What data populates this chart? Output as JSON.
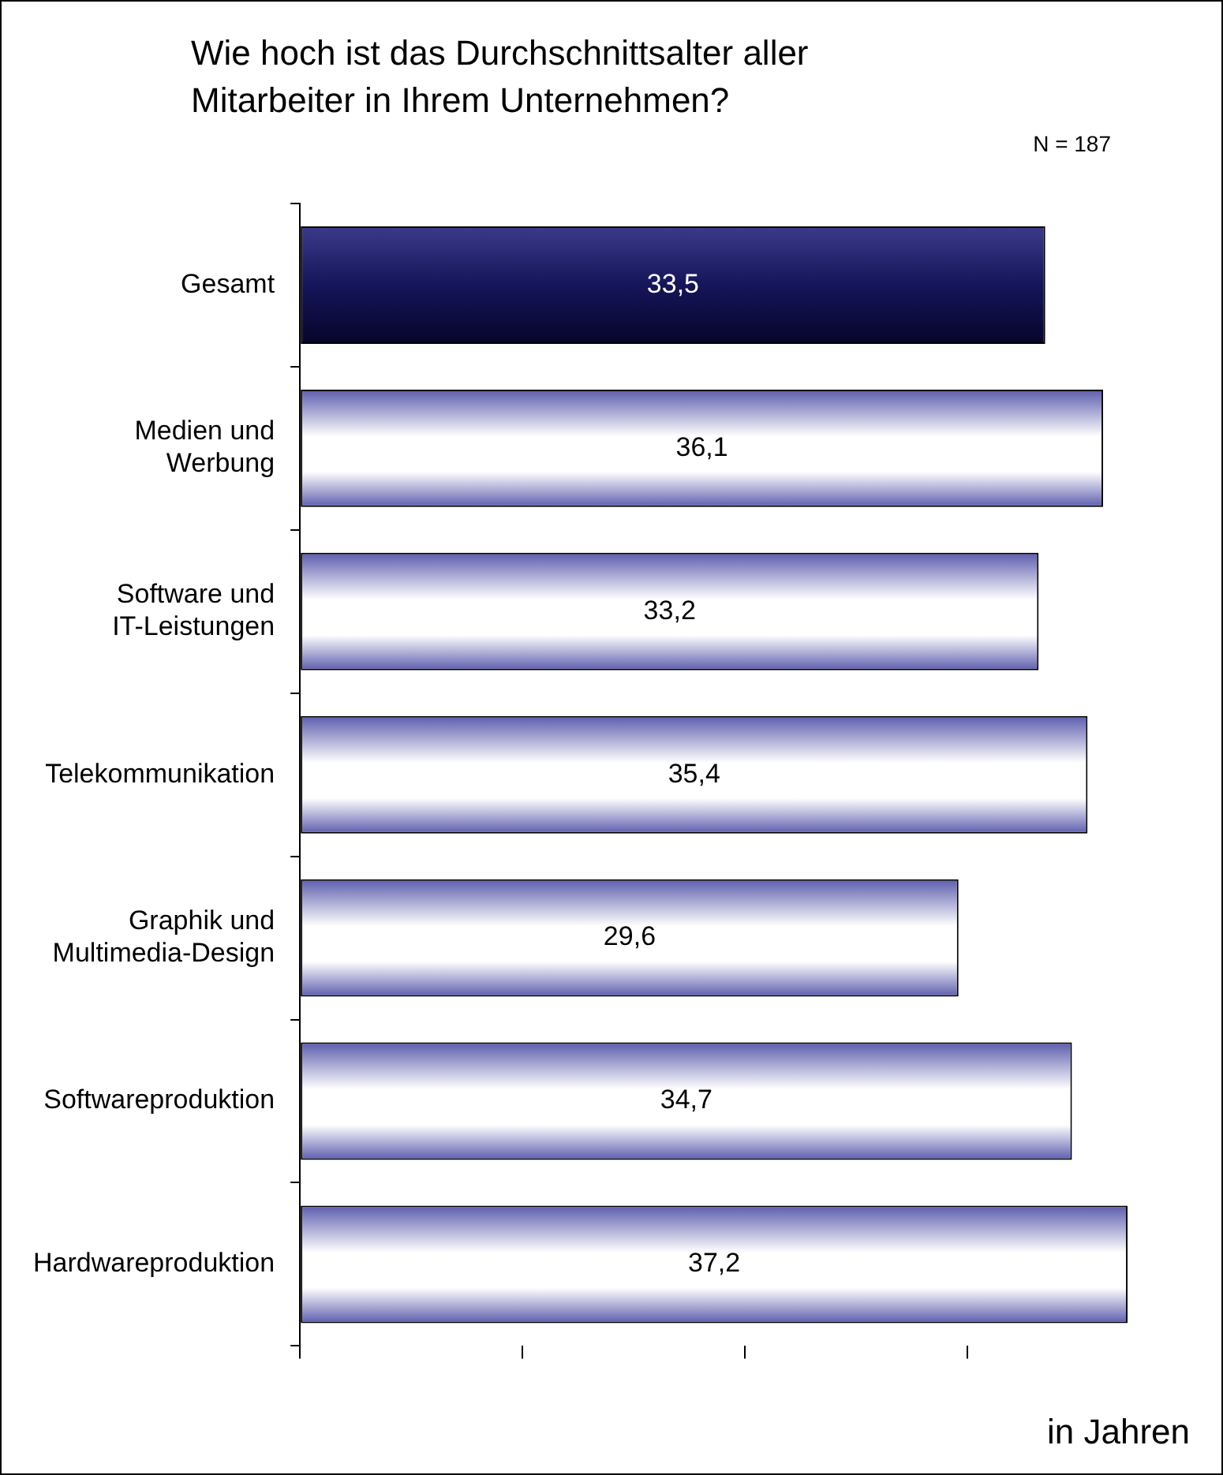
{
  "chart_data": {
    "type": "bar",
    "orientation": "horizontal",
    "title": "Wie hoch ist das Durchschnittsalter aller Mitarbeiter in Ihrem Unternehmen?",
    "xlabel": "in Jahren",
    "annotations": [
      "N = 187"
    ],
    "categories": [
      "Gesamt",
      "Medien und Werbung",
      "Software und IT-Leistungen",
      "Telekommunikation",
      "Graphik und Multimedia-Design",
      "Softwareproduktion",
      "Hardwareproduktion"
    ],
    "values": [
      33.5,
      36.1,
      33.2,
      35.4,
      29.6,
      34.7,
      37.2
    ],
    "colors": [
      "#15155a",
      "#5c5cae",
      "#5c5cae",
      "#5c5cae",
      "#5c5cae",
      "#5c5cae",
      "#5c5cae"
    ],
    "value_labels": [
      "33,5",
      "36,1",
      "33,2",
      "35,4",
      "29,6",
      "34,7",
      "37,2"
    ],
    "xticks": [
      {
        "value": 0,
        "label": null
      },
      {
        "value": 10,
        "label": null
      },
      {
        "value": 20,
        "label": null
      },
      {
        "value": 30,
        "label": null
      }
    ],
    "grid": false,
    "legend": false
  }
}
